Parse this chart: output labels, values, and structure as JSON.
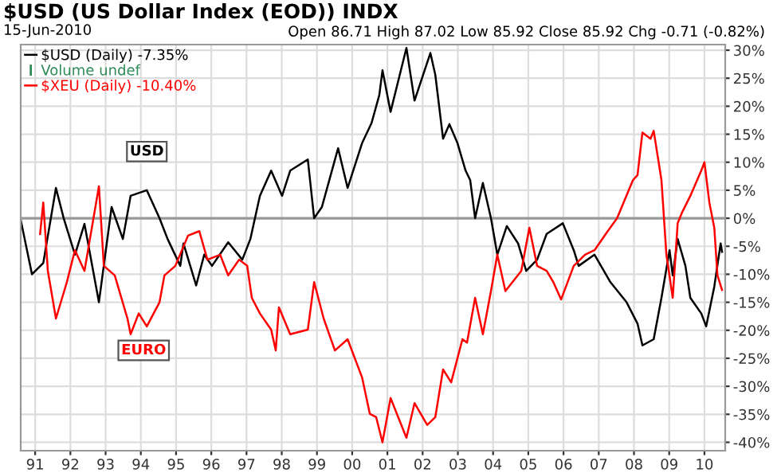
{
  "chart_data": {
    "type": "line",
    "title": "$USD (US Dollar Index (EOD)) INDX",
    "subtitle": "15-Jun-2010",
    "annotations": [
      "Open 86.71 High 87.02 Low 85.92 Close 85.92 Chg -0.71 (-0.82%)",
      "Volume undef",
      {
        "text": "USD",
        "x": 1994.17,
        "y": 11.9
      },
      {
        "text": "EURO",
        "x": 1994.08,
        "y": -23.6
      }
    ],
    "x": [
      1990.59,
      1990.91,
      1991.23,
      1991.59,
      1991.81,
      1992.13,
      1992.4,
      1992.81,
      1993.17,
      1993.49,
      1993.71,
      1994.17,
      1994.53,
      1994.76,
      1995.12,
      1995.21,
      1995.57,
      1995.8,
      1996.02,
      1996.48,
      1996.88,
      1997.11,
      1997.24,
      1997.38,
      1997.7,
      1998.01,
      1998.24,
      1998.74,
      1998.92,
      1999.14,
      1999.6,
      1999.87,
      2000.28,
      2000.55,
      2000.77,
      2000.86,
      2001.09,
      2001.54,
      2001.77,
      2002.22,
      2002.36,
      2002.58,
      2002.76,
      2002.99,
      2003.22,
      2003.35,
      2003.49,
      2003.71,
      2003.94,
      2004.12,
      2004.39,
      2004.71,
      2004.94,
      2005.25,
      2005.52,
      2005.98,
      2006.29,
      2006.43,
      2006.88,
      2007.33,
      2007.79,
      2008.1,
      2008.24,
      2008.56,
      2008.78,
      2009.01,
      2009.1,
      2009.24,
      2009.46,
      2009.6,
      2009.91,
      2010.05,
      2010.28,
      2010.46,
      2010.5
    ],
    "series": [
      {
        "name": "$USD (Daily) -7.35%",
        "color": "#000000",
        "values": [
          -0.3,
          -10,
          -8,
          5.4,
          0,
          -6.5,
          -1,
          -15,
          2,
          -3.7,
          4,
          5,
          0,
          -3.7,
          -8.5,
          -4.5,
          -12,
          -6.5,
          -8.5,
          -4.3,
          -7.4,
          -3.7,
          0,
          4,
          8.5,
          4,
          8.5,
          10.5,
          0,
          2,
          12.5,
          5.4,
          13.4,
          17,
          22,
          26.4,
          19,
          30.4,
          21,
          29.5,
          25.6,
          14.2,
          16.8,
          13.4,
          8.5,
          6.8,
          0,
          6.3,
          0,
          -6.5,
          -1.4,
          -4.5,
          -9.4,
          -7.4,
          -2.8,
          -0.9,
          -5.7,
          -8.5,
          -6.5,
          -11.4,
          -15,
          -18.8,
          -22.7,
          -21.6,
          -14.2,
          -5.7,
          -10.2,
          -3.7,
          -8.5,
          -14.2,
          -17,
          -19.3,
          -12.2,
          -4.5,
          -6
        ]
      },
      {
        "name": "$XEU (Daily) -10.40%",
        "color": "#ff0000",
        "x": [
          1991.14,
          1991.23,
          1991.36,
          1991.59,
          1991.9,
          1992.13,
          1992.4,
          1992.81,
          1992.95,
          1993.26,
          1993.62,
          1993.71,
          1993.94,
          1994.17,
          1994.53,
          1994.67,
          1994.98,
          1995.34,
          1995.66,
          1995.89,
          1996.25,
          1996.48,
          1996.79,
          1997.02,
          1997.15,
          1997.38,
          1997.7,
          1997.83,
          1997.92,
          1998.24,
          1998.74,
          1998.92,
          1999.19,
          1999.51,
          1999.87,
          2000.28,
          2000.5,
          2000.68,
          2000.86,
          2001.09,
          2001.54,
          2001.77,
          2002.13,
          2002.36,
          2002.58,
          2002.81,
          2003.13,
          2003.26,
          2003.49,
          2003.71,
          2003.94,
          2004.12,
          2004.35,
          2004.8,
          2005.03,
          2005.25,
          2005.52,
          2005.71,
          2005.93,
          2006.29,
          2006.61,
          2006.88,
          2007.2,
          2007.52,
          2007.97,
          2008.1,
          2008.24,
          2008.47,
          2008.56,
          2008.78,
          2008.92,
          2009.1,
          2009.24,
          2009.37,
          2009.6,
          2009.91,
          2010.0,
          2010.14,
          2010.28,
          2010.37,
          2010.5
        ],
        "values": [
          -2.8,
          2.8,
          -9.4,
          -17.9,
          -11.4,
          -5.7,
          -9.4,
          5.7,
          -8.5,
          -10.2,
          -17.9,
          -20.7,
          -17,
          -19.3,
          -15,
          -10.2,
          -8.5,
          -3.1,
          -2.3,
          -7.4,
          -6.5,
          -10.2,
          -7.4,
          -8.5,
          -14.2,
          -17,
          -19.9,
          -23.6,
          -15.9,
          -20.7,
          -19.9,
          -11.4,
          -17.9,
          -23.6,
          -21.6,
          -28.4,
          -34.9,
          -35.5,
          -40,
          -32.1,
          -39.2,
          -33,
          -36.9,
          -35.5,
          -27,
          -29.3,
          -21.6,
          -22.2,
          -14.2,
          -20.7,
          -13,
          -6.5,
          -13,
          -9.4,
          -1.7,
          -8.5,
          -9.4,
          -11.4,
          -14.5,
          -8.5,
          -6.5,
          -5.7,
          -2.8,
          0,
          6.8,
          7.7,
          15.3,
          14.2,
          15.6,
          6.8,
          -6.5,
          -14.2,
          -0.9,
          1.1,
          4,
          8.5,
          10,
          2.8,
          -1.7,
          -10.2,
          -12.8
        ]
      }
    ],
    "xlim": [
      1990.59,
      2010.59
    ],
    "xticks": [
      {
        "value": 1991,
        "label": "91"
      },
      {
        "value": 1992,
        "label": "92"
      },
      {
        "value": 1993,
        "label": "93"
      },
      {
        "value": 1994,
        "label": "94"
      },
      {
        "value": 1995,
        "label": "95"
      },
      {
        "value": 1996,
        "label": "96"
      },
      {
        "value": 1997,
        "label": "97"
      },
      {
        "value": 1998,
        "label": "98"
      },
      {
        "value": 1999,
        "label": "99"
      },
      {
        "value": 2000,
        "label": "00"
      },
      {
        "value": 2001,
        "label": "01"
      },
      {
        "value": 2002,
        "label": "02"
      },
      {
        "value": 2003,
        "label": "03"
      },
      {
        "value": 2004,
        "label": "04"
      },
      {
        "value": 2005,
        "label": "05"
      },
      {
        "value": 2006,
        "label": "06"
      },
      {
        "value": 2007,
        "label": "07"
      },
      {
        "value": 2008,
        "label": "08"
      },
      {
        "value": 2009,
        "label": "09"
      },
      {
        "value": 2010,
        "label": "10"
      }
    ],
    "ylim": [
      -41.5,
      31
    ],
    "yticks": [
      {
        "value": -40,
        "label": "-40%"
      },
      {
        "value": -35,
        "label": "-35%"
      },
      {
        "value": -30,
        "label": "-30%"
      },
      {
        "value": -25,
        "label": "-25%"
      },
      {
        "value": -20,
        "label": "-20%"
      },
      {
        "value": -15,
        "label": "-15%"
      },
      {
        "value": -10,
        "label": "-10%"
      },
      {
        "value": -5,
        "label": "-5%"
      },
      {
        "value": 0,
        "label": "0%"
      },
      {
        "value": 5,
        "label": "5%"
      },
      {
        "value": 10,
        "label": "10%"
      },
      {
        "value": 15,
        "label": "15%"
      },
      {
        "value": 20,
        "label": "20%"
      },
      {
        "value": 25,
        "label": "25%"
      },
      {
        "value": 30,
        "label": "30%"
      }
    ],
    "ref_lines": [
      {
        "axis": "y",
        "value": 0,
        "color": "#999999"
      }
    ],
    "grid": true,
    "legend": "top left",
    "line_style": "solid"
  }
}
